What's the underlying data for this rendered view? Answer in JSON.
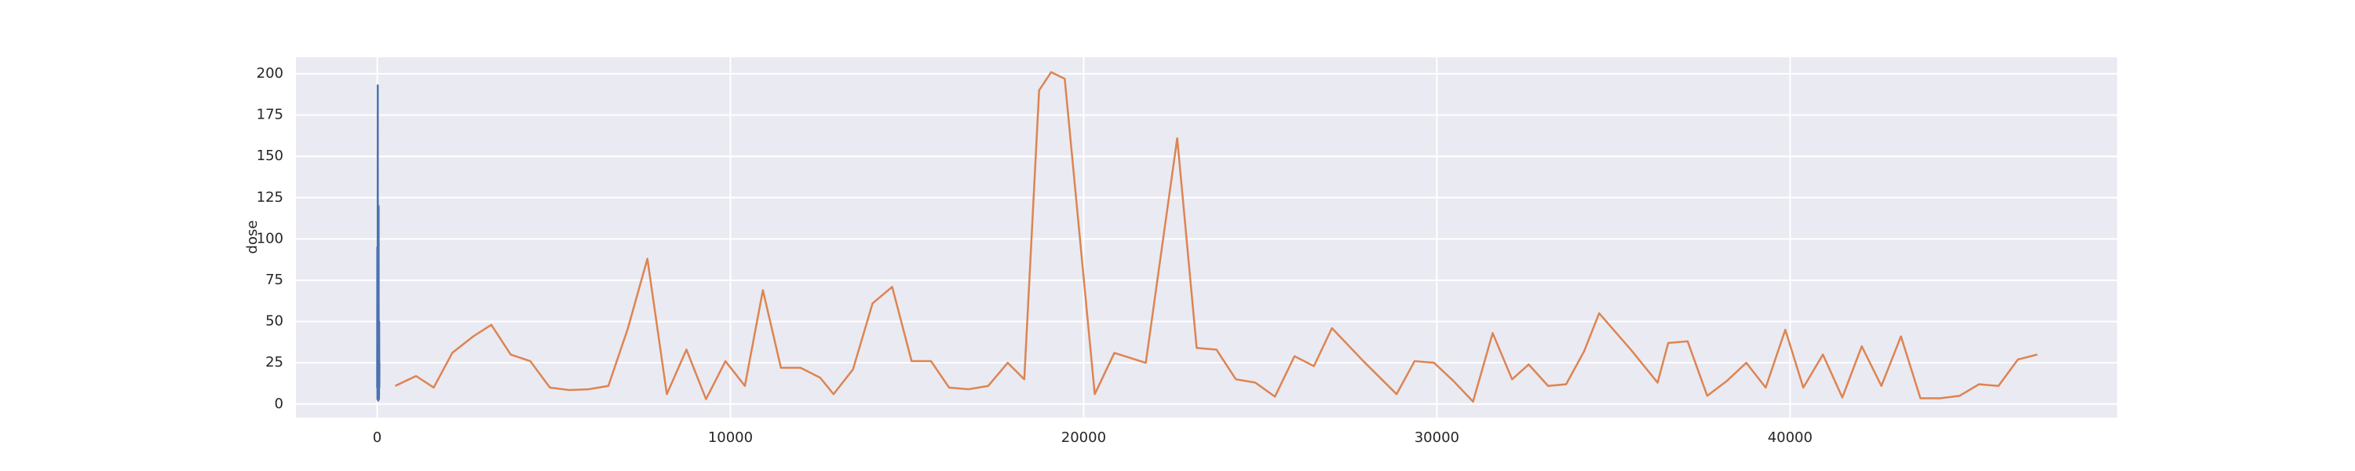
{
  "chart_data": {
    "type": "line",
    "ylabel": "dose",
    "xlim": [
      -2300,
      49260
    ],
    "ylim": [
      -8.2,
      210
    ],
    "xticks": [
      0,
      10000,
      20000,
      30000,
      40000
    ],
    "yticks": [
      0,
      25,
      50,
      75,
      100,
      125,
      150,
      175,
      200
    ],
    "grid": true,
    "background": "#eaeaf2",
    "series": [
      {
        "color": "#4c72b0",
        "x": [
          0,
          4,
          8,
          12,
          16,
          20,
          24,
          28,
          32,
          36,
          40,
          44,
          48,
          52,
          56,
          60,
          64
        ],
        "values": [
          10,
          95,
          3,
          30,
          193,
          5,
          55,
          2,
          40,
          15,
          120,
          8,
          35,
          3,
          50,
          10,
          25
        ]
      },
      {
        "color": "#dd8452",
        "x": [
          510,
          1100,
          1600,
          2125,
          2720,
          3230,
          3780,
          4335,
          4890,
          5440,
          5990,
          6545,
          7100,
          7650,
          8200,
          8755,
          9310,
          9860,
          10410,
          10920,
          11430,
          11985,
          12540,
          12920,
          13470,
          14025,
          14580,
          15130,
          15680,
          16190,
          16745,
          17300,
          17850,
          18320,
          18740,
          19080,
          19465,
          20315,
          20870,
          21760,
          22650,
          23200,
          23760,
          24310,
          24860,
          25415,
          25970,
          26520,
          27030,
          27920,
          28860,
          29370,
          29920,
          30470,
          31025,
          31580,
          32130,
          32600,
          33150,
          33660,
          34170,
          34595,
          35490,
          36250,
          36550,
          37100,
          37655,
          38210,
          38760,
          39310,
          39865,
          40375,
          40930,
          41480,
          42030,
          42585,
          43140,
          43690,
          44245,
          44800,
          45350,
          45900,
          46450,
          47000
        ],
        "values": [
          11,
          17,
          10,
          31,
          41,
          48,
          30,
          26,
          10,
          8.5,
          9,
          11,
          46,
          88,
          6,
          33,
          3,
          26,
          11,
          69,
          22,
          22,
          16,
          6,
          21,
          61,
          71,
          26,
          26,
          10,
          9,
          11,
          25,
          15,
          190,
          201,
          197,
          6,
          31,
          25,
          161,
          34,
          33,
          15,
          13,
          4.5,
          29,
          23,
          46,
          26,
          6,
          26,
          25,
          14,
          1.5,
          43,
          15,
          24,
          11,
          12,
          32,
          55,
          33,
          13,
          37,
          38,
          5,
          14,
          25,
          10,
          45,
          10,
          30,
          4,
          35,
          11,
          41,
          3.5,
          3.5,
          5,
          12,
          11,
          27,
          30
        ]
      }
    ]
  }
}
